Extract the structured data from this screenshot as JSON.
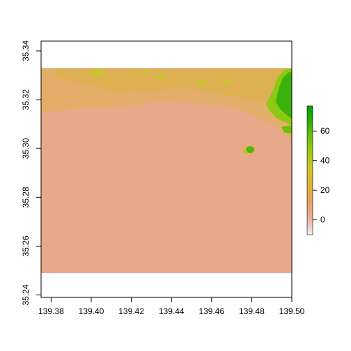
{
  "chart_data": {
    "type": "heatmap",
    "title": "",
    "xlabel": "",
    "ylabel": "",
    "xlim": [
      139.375,
      139.5
    ],
    "ylim": [
      35.239,
      35.344
    ],
    "raster_extent": {
      "x": [
        139.375,
        139.5
      ],
      "y": [
        35.25,
        35.333
      ]
    },
    "x_ticks": [
      "139.38",
      "139.40",
      "139.42",
      "139.44",
      "139.46",
      "139.48",
      "139.50"
    ],
    "y_ticks": [
      "35.24",
      "35.26",
      "35.28",
      "35.30",
      "35.32",
      "35.34"
    ],
    "legend": {
      "placement": "right",
      "range": [
        -10,
        77
      ],
      "ticks": [
        "0",
        "20",
        "40",
        "60"
      ],
      "colors": [
        "#F2F2F2",
        "#EAB09A",
        "#E4A062",
        "#E0B23A",
        "#C8C727",
        "#8CC80F",
        "#3BB20A",
        "#00A600"
      ]
    },
    "colors": {
      "sea": "#E8A98A",
      "coast_low": "#E3AE6A",
      "coast_mid": "#D8B33E",
      "hill_high": "#3BB10D",
      "hill_mid": "#8BC912",
      "frame": "#000000"
    }
  }
}
